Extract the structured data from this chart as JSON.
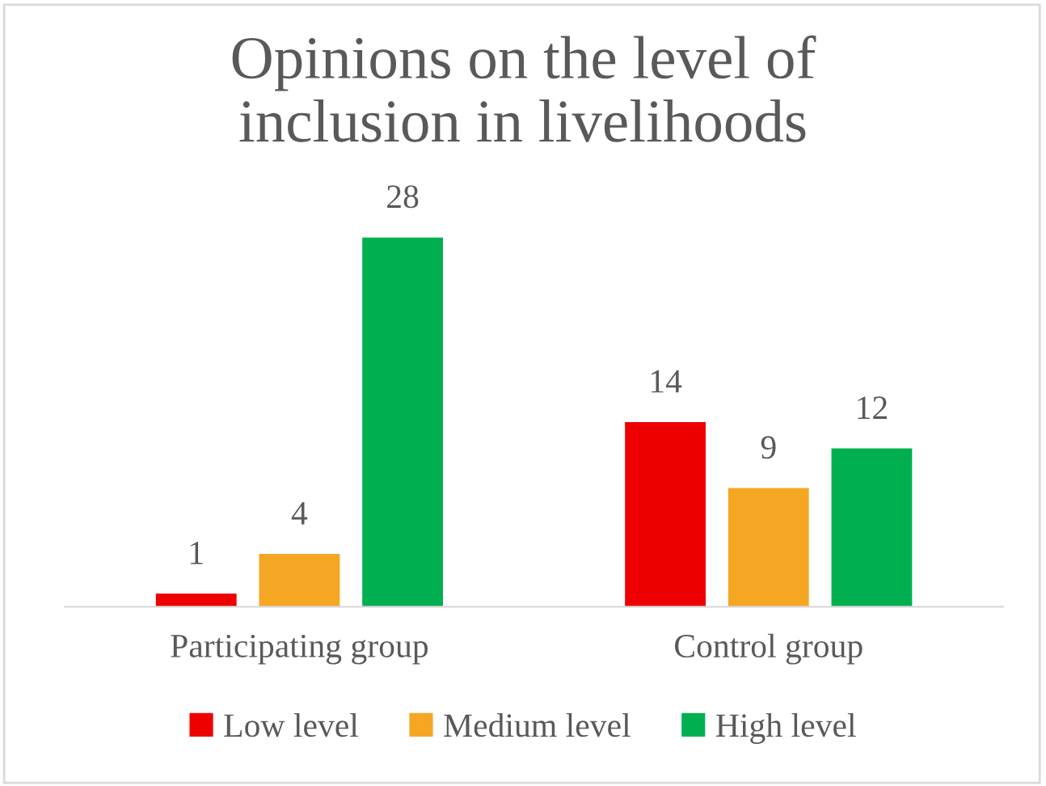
{
  "chart_data": {
    "type": "bar",
    "title": "Opinions on the level of inclusion in livelihoods",
    "categories": [
      "Participating group",
      "Control group"
    ],
    "series": [
      {
        "name": "Low level",
        "color": "#ee0000",
        "values": [
          1,
          14
        ]
      },
      {
        "name": "Medium level",
        "color": "#f5a623",
        "values": [
          4,
          9
        ]
      },
      {
        "name": "High level",
        "color": "#00b050",
        "values": [
          28,
          12
        ]
      }
    ],
    "data_labels": true,
    "grid": false,
    "legend": "bottom"
  }
}
